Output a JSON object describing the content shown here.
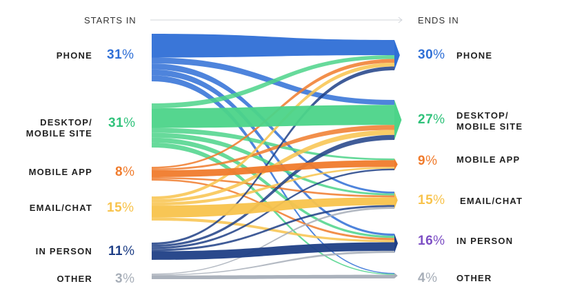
{
  "header": {
    "starts_in": "STARTS IN",
    "ends_in": "ENDS IN"
  },
  "colors": {
    "phone": "#2f6fd6",
    "desktop_mobile_site": "#4cd489",
    "mobile_app": "#f07b2c",
    "email_chat": "#f8c34c",
    "in_person": "#1f3f86",
    "other": "#a7aeb8",
    "in_person_end_pct": "#7d4fc4"
  },
  "start": [
    {
      "key": "phone",
      "label": "PHONE",
      "value": "31",
      "unit": "%",
      "color": "#2f6fd6"
    },
    {
      "key": "desktop_mobile_site",
      "label": "DESKTOP/\nMOBILE SITE",
      "value": "31",
      "unit": "%",
      "color": "#2fc27a"
    },
    {
      "key": "mobile_app",
      "label": "MOBILE APP",
      "value": "8",
      "unit": "%",
      "color": "#f07b2c"
    },
    {
      "key": "email_chat",
      "label": "EMAIL/CHAT",
      "value": "15",
      "unit": "%",
      "color": "#f8c34c"
    },
    {
      "key": "in_person",
      "label": "IN PERSON",
      "value": "11",
      "unit": "%",
      "color": "#1f3f86"
    },
    {
      "key": "other",
      "label": "OTHER",
      "value": "3",
      "unit": "%",
      "color": "#a7aeb8"
    }
  ],
  "end": [
    {
      "key": "phone",
      "label": "PHONE",
      "value": "30",
      "unit": "%",
      "color": "#2f6fd6"
    },
    {
      "key": "desktop_mobile_site",
      "label": "DESKTOP/\nMOBILE SITE",
      "value": "27",
      "unit": "%",
      "color": "#2fc27a"
    },
    {
      "key": "mobile_app",
      "label": "MOBILE APP",
      "value": "9",
      "unit": "%",
      "color": "#f07b2c"
    },
    {
      "key": "email_chat",
      "label": "EMAIL/CHAT",
      "value": "15",
      "unit": "%",
      "color": "#f8c34c"
    },
    {
      "key": "in_person",
      "label": "IN PERSON",
      "value": "16",
      "unit": "%",
      "color": "#7d4fc4"
    },
    {
      "key": "other",
      "label": "OTHER",
      "value": "4",
      "unit": "%",
      "color": "#a7aeb8"
    }
  ],
  "flows": [
    {
      "from": "phone",
      "to": "phone",
      "color": "#2f6fd6"
    },
    {
      "from": "phone",
      "to": "in_person",
      "color": "#2f6fd6"
    },
    {
      "from": "phone",
      "to": "email_chat",
      "color": "#2f6fd6"
    },
    {
      "from": "phone",
      "to": "desktop_mobile_site",
      "color": "#2f6fd6"
    },
    {
      "from": "phone",
      "to": "other",
      "color": "#2f6fd6"
    },
    {
      "from": "desktop_mobile_site",
      "to": "desktop_mobile_site",
      "color": "#4cd489"
    },
    {
      "from": "desktop_mobile_site",
      "to": "phone",
      "color": "#4cd489"
    },
    {
      "from": "desktop_mobile_site",
      "to": "mobile_app",
      "color": "#4cd489"
    },
    {
      "from": "desktop_mobile_site",
      "to": "email_chat",
      "color": "#4cd489"
    },
    {
      "from": "desktop_mobile_site",
      "to": "in_person",
      "color": "#4cd489"
    },
    {
      "from": "desktop_mobile_site",
      "to": "other",
      "color": "#4cd489"
    },
    {
      "from": "mobile_app",
      "to": "mobile_app",
      "color": "#f07b2c"
    },
    {
      "from": "mobile_app",
      "to": "phone",
      "color": "#f07b2c"
    },
    {
      "from": "mobile_app",
      "to": "desktop_mobile_site",
      "color": "#f07b2c"
    },
    {
      "from": "mobile_app",
      "to": "email_chat",
      "color": "#f07b2c"
    },
    {
      "from": "mobile_app",
      "to": "in_person",
      "color": "#f07b2c"
    },
    {
      "from": "email_chat",
      "to": "email_chat",
      "color": "#f8c34c"
    },
    {
      "from": "email_chat",
      "to": "phone",
      "color": "#f8c34c"
    },
    {
      "from": "email_chat",
      "to": "desktop_mobile_site",
      "color": "#f8c34c"
    },
    {
      "from": "email_chat",
      "to": "mobile_app",
      "color": "#f8c34c"
    },
    {
      "from": "email_chat",
      "to": "in_person",
      "color": "#f8c34c"
    },
    {
      "from": "in_person",
      "to": "in_person",
      "color": "#1f3f86"
    },
    {
      "from": "in_person",
      "to": "phone",
      "color": "#1f3f86"
    },
    {
      "from": "in_person",
      "to": "desktop_mobile_site",
      "color": "#1f3f86"
    },
    {
      "from": "in_person",
      "to": "mobile_app",
      "color": "#1f3f86"
    },
    {
      "from": "in_person",
      "to": "email_chat",
      "color": "#1f3f86"
    },
    {
      "from": "other",
      "to": "other",
      "color": "#a7aeb8"
    },
    {
      "from": "other",
      "to": "in_person",
      "color": "#a7aeb8"
    },
    {
      "from": "other",
      "to": "email_chat",
      "color": "#a7aeb8"
    }
  ]
}
